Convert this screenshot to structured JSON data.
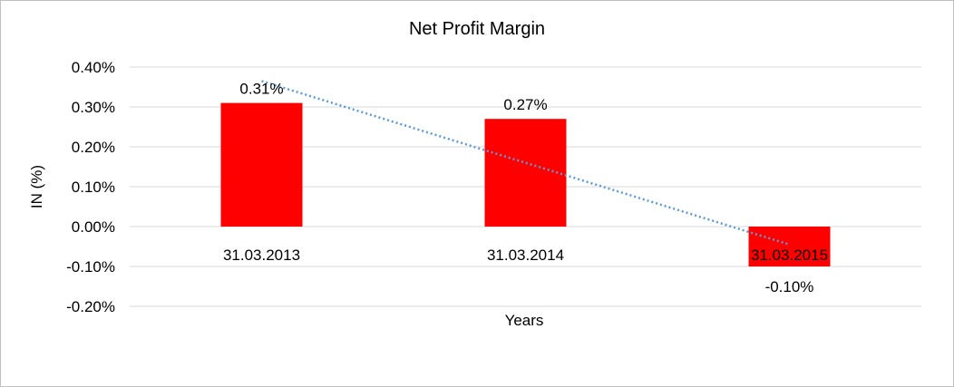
{
  "chart_data": {
    "type": "bar",
    "title": "Net Profit Margin",
    "xlabel": "Years",
    "ylabel": "IN (%)",
    "categories": [
      "31.03.2013",
      "31.03.2014",
      "31.03.2015"
    ],
    "values": [
      0.31,
      0.27,
      -0.1
    ],
    "data_labels": [
      "0.31%",
      "0.27%",
      "-0.10%"
    ],
    "ylim": [
      -0.2,
      0.4
    ],
    "yticks": [
      -0.2,
      -0.1,
      0.0,
      0.1,
      0.2,
      0.3,
      0.4
    ],
    "ytick_labels": [
      "-0.20%",
      "-0.10%",
      "0.00%",
      "0.10%",
      "0.20%",
      "0.30%",
      "0.40%"
    ],
    "grid": true,
    "legend": "none",
    "trendline": "linear",
    "colors": {
      "bar": "#ff0000",
      "trendline": "#5b9bd5",
      "grid": "#d9d9d9",
      "border": "#bfbfbf"
    }
  }
}
